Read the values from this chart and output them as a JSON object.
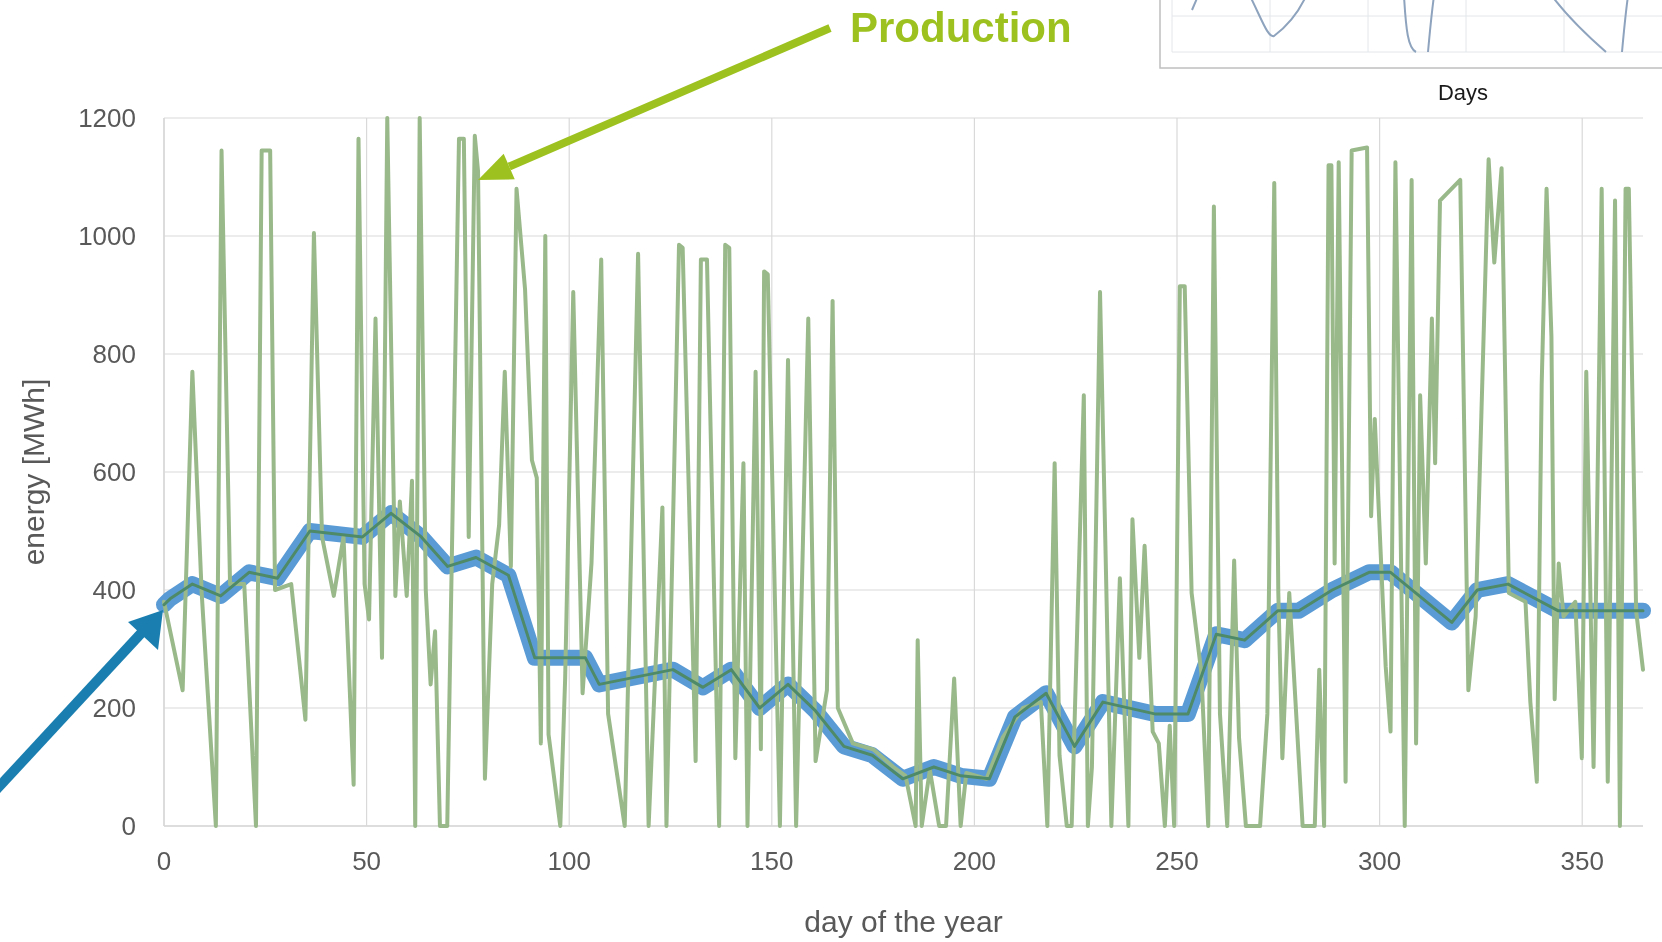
{
  "chart_data": {
    "type": "line",
    "xlabel": "day of the year",
    "ylabel": "energy [MWh]",
    "xlim": [
      0,
      365
    ],
    "xticks": [
      0,
      50,
      100,
      150,
      200,
      250,
      300,
      350
    ],
    "ylim": [
      0,
      1200
    ],
    "yticks": [
      0,
      200,
      400,
      600,
      800,
      1000,
      1200
    ],
    "grid": true,
    "series": [
      {
        "color": "#5b9bd5",
        "x": [
          0,
          1.5,
          7,
          14,
          21,
          28,
          36,
          49,
          56,
          63.5,
          70,
          77,
          85,
          91.5,
          104,
          107.4,
          125.6,
          133,
          140,
          147,
          154,
          160.8,
          167.8,
          174.8,
          182.3,
          190,
          196.7,
          203.7,
          210,
          217.7,
          224.7,
          231.7,
          244.5,
          252.7,
          259.7,
          266.7,
          274.9,
          280.1,
          288.3,
          297.4,
          302.7,
          317.8,
          324.1,
          331.7,
          344,
          365
        ],
        "values": [
          375,
          385,
          410,
          390,
          430,
          420,
          500,
          490,
          530,
          490,
          440,
          455,
          425,
          285,
          285,
          240,
          265,
          235,
          265,
          200,
          240,
          195,
          135,
          120,
          80,
          100,
          85,
          80,
          185,
          225,
          135,
          210,
          190,
          190,
          325,
          315,
          365,
          365,
          400,
          430,
          430,
          345,
          400,
          410,
          365,
          365
        ]
      },
      {
        "color": "#9ab98a",
        "x": [
          0,
          4.6,
          7,
          9.3,
          12.8,
          14.2,
          16.3,
          19.8,
          22.7,
          24.1,
          26.2,
          27.4,
          31.4,
          34.9,
          37,
          39,
          41.9,
          44.3,
          46.8,
          48,
          49.5,
          50.6,
          52.2,
          53.8,
          55.1,
          57.1,
          58.2,
          59.9,
          61.2,
          62,
          63.1,
          64.6,
          65.8,
          66.9,
          68.1,
          69.9,
          72.8,
          74,
          75.2,
          76.7,
          77.5,
          79.2,
          81,
          82.7,
          84.1,
          85.6,
          87,
          89.1,
          90.8,
          92,
          93,
          94.1,
          94.9,
          97.8,
          99,
          101,
          103.3,
          105.5,
          107.9,
          109.6,
          113.7,
          117,
          119.6,
          123,
          124,
          127.1,
          128,
          131.2,
          132.5,
          134,
          137,
          138.5,
          139.5,
          141,
          143,
          144,
          146,
          147.3,
          148.1,
          149,
          152,
          154,
          156,
          159,
          160.8,
          163.6,
          165,
          166.3,
          170,
          175,
          180,
          183,
          185.5,
          186,
          187,
          189,
          191.3,
          193,
          195,
          196.6,
          198,
          203,
          207,
          212,
          216.4,
          218,
          219.8,
          221,
          222.8,
          224,
          227,
          228,
          229,
          231,
          233.8,
          235.9,
          238,
          239,
          240.7,
          242,
          244,
          245.5,
          247,
          248.2,
          249.3,
          250.7,
          251.9,
          253.6,
          256,
          257.7,
          259.1,
          260.6,
          262.4,
          264.1,
          265.3,
          267,
          270.5,
          272.3,
          274,
          275,
          276,
          277.7,
          281,
          284,
          285.1,
          286.3,
          287.4,
          288.1,
          288.9,
          289.9,
          291.6,
          293.1,
          296.9,
          297.9,
          298.8,
          301.5,
          302.7,
          303.9,
          306.2,
          307.9,
          309,
          310,
          311.4,
          312.9,
          313.7,
          314.9,
          319.9,
          321.9,
          323.7,
          326.9,
          328.3,
          330.1,
          331.9,
          336,
          337.2,
          338.8,
          340,
          341.2,
          342.4,
          343.2,
          344.2,
          345.4,
          348.3,
          349.9,
          351,
          352.8,
          354.8,
          356.3,
          358.1,
          359.3,
          360.7,
          361.5,
          363.3,
          365
        ],
        "values": [
          380,
          230,
          770,
          395,
          0,
          1145,
          410,
          410,
          0,
          1145,
          1145,
          400,
          410,
          180,
          1005,
          490,
          390,
          490,
          70,
          1165,
          410,
          350,
          860,
          285,
          1200,
          390,
          550,
          390,
          585,
          0,
          1200,
          400,
          240,
          330,
          0,
          0,
          1165,
          1165,
          490,
          1170,
          1110,
          80,
          410,
          510,
          770,
          440,
          1080,
          910,
          620,
          590,
          140,
          1000,
          155,
          0,
          250,
          905,
          225,
          445,
          960,
          190,
          0,
          970,
          0,
          540,
          0,
          985,
          980,
          110,
          960,
          960,
          0,
          985,
          980,
          115,
          615,
          0,
          770,
          130,
          940,
          935,
          0,
          790,
          0,
          860,
          110,
          230,
          890,
          200,
          140,
          130,
          100,
          85,
          0,
          315,
          0,
          95,
          0,
          0,
          250,
          0,
          90,
          80,
          150,
          200,
          210,
          0,
          615,
          120,
          0,
          0,
          730,
          0,
          100,
          905,
          0,
          420,
          0,
          520,
          285,
          475,
          160,
          140,
          0,
          170,
          0,
          915,
          915,
          395,
          260,
          0,
          1050,
          190,
          0,
          450,
          150,
          0,
          0,
          190,
          1090,
          395,
          115,
          395,
          0,
          0,
          265,
          0,
          1120,
          1120,
          445,
          1125,
          75,
          1145,
          1150,
          525,
          690,
          270,
          160,
          1125,
          0,
          1095,
          140,
          730,
          445,
          860,
          615,
          1060,
          1095,
          230,
          355,
          1130,
          955,
          1115,
          395,
          380,
          210,
          75,
          750,
          1080,
          830,
          215,
          445,
          355,
          380,
          115,
          770,
          100,
          1080,
          75,
          1060,
          0,
          1080,
          1080,
          365,
          265
        ]
      },
      {
        "color": "#4e8a68",
        "x": [
          0,
          1.5,
          7,
          14,
          21,
          28,
          36,
          49,
          56,
          63.5,
          70,
          77,
          85,
          91.5,
          104,
          107.4,
          125.6,
          133,
          140,
          147,
          154,
          160.8,
          167.8,
          174.8,
          182.3,
          190,
          196.7,
          203.7,
          210,
          217.7,
          224.7,
          231.7,
          244.5,
          252.7,
          259.7,
          266.7,
          274.9,
          280.1,
          288.3,
          297.4,
          302.7,
          317.8,
          324.1,
          331.7,
          344,
          365
        ],
        "values": [
          375,
          385,
          410,
          390,
          430,
          420,
          500,
          490,
          530,
          490,
          440,
          455,
          425,
          285,
          285,
          240,
          265,
          235,
          265,
          200,
          240,
          195,
          135,
          120,
          80,
          100,
          85,
          80,
          185,
          225,
          135,
          210,
          190,
          190,
          325,
          315,
          365,
          365,
          400,
          430,
          430,
          345,
          400,
          410,
          365,
          365
        ]
      }
    ],
    "annotations": [
      "Production",
      "Days"
    ]
  }
}
